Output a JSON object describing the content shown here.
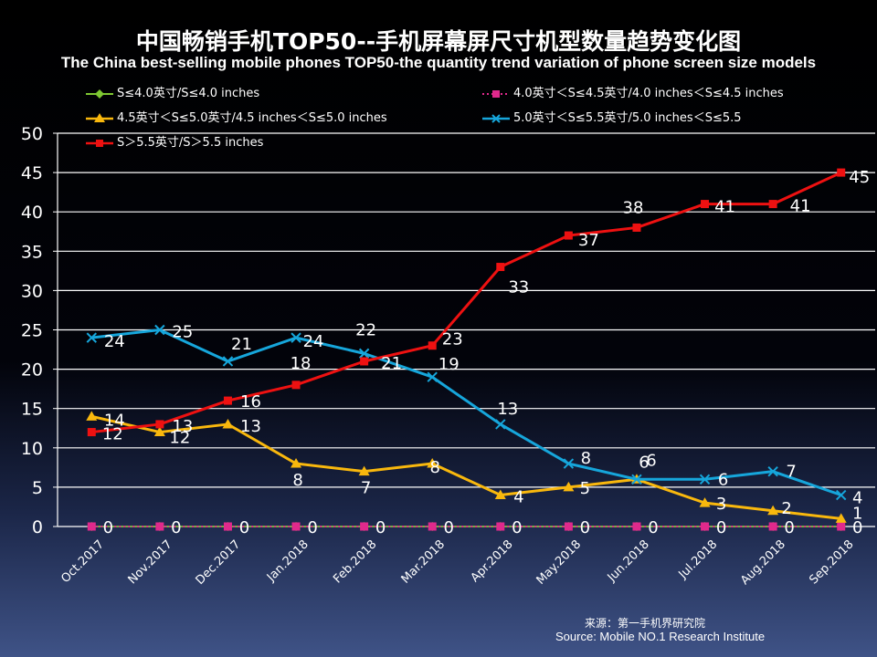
{
  "title_cn": "中国畅销手机TOP50--手机屏幕屏尺寸机型数量趋势变化图",
  "title_en": "The China best-selling mobile phones TOP50-the quantity trend variation of phone screen size models",
  "source_cn": "来源：第一手机界研究院",
  "source_en": "Source: Mobile NO.1 Research Institute",
  "chart_data": {
    "type": "line",
    "title": "中国畅销手机TOP50--手机屏幕屏尺寸机型数量趋势变化图",
    "subtitle": "The China best-selling mobile phones TOP50-the quantity trend variation of phone screen size models",
    "categories": [
      "Oct.2017",
      "Nov.2017",
      "Dec.2017",
      "Jan.2018",
      "Feb.2018",
      "Mar.2018",
      "Apr.2018",
      "May.2018",
      "Jun.2018",
      "Jul.2018",
      "Aug.2018",
      "Sep.2018"
    ],
    "ylim": [
      0,
      50
    ],
    "yticks": [
      "0",
      "5",
      "10",
      "15",
      "20",
      "25",
      "30",
      "35",
      "40",
      "45",
      "50"
    ],
    "grid": true,
    "legend_position": "top",
    "series": [
      {
        "name": "S≤4.0英寸/S≤4.0 inches",
        "color": "#7ec832",
        "marker": "diamond",
        "values": [
          0,
          0,
          0,
          0,
          0,
          0,
          0,
          0,
          0,
          0,
          0,
          0
        ],
        "labels": [],
        "label_offsets": []
      },
      {
        "name": "4.0英寸＜S≤4.5英寸/4.0 inches＜S≤4.5 inches",
        "color": "#e0298c",
        "marker": "square",
        "values": [
          0,
          0,
          0,
          0,
          0,
          0,
          0,
          0,
          0,
          0,
          0,
          0
        ],
        "labels": [
          "0",
          "0",
          "0",
          "0",
          "0",
          "0",
          "0",
          "0",
          "0",
          "0",
          "0",
          "0"
        ]
      },
      {
        "name": "4.5英寸＜S≤5.0英寸/4.5 inches＜S≤5.0 inches",
        "color": "#f9b80d",
        "marker": "triangle",
        "values": [
          14,
          12,
          13,
          8,
          7,
          8,
          4,
          5,
          6,
          3,
          2,
          1
        ],
        "labels": [
          "14",
          "12",
          "13",
          "8",
          "7",
          "8",
          "4",
          "5",
          "6",
          "3",
          "2",
          "1"
        ]
      },
      {
        "name": "5.0英寸＜S≤5.5英寸/5.0 inches＜S≤5.5",
        "color": "#16a6db",
        "marker": "x",
        "values": [
          24,
          25,
          21,
          24,
          22,
          19,
          13,
          8,
          6,
          6,
          7,
          4
        ],
        "labels": [
          "24",
          "25",
          "21",
          "24",
          "22",
          "19",
          "13",
          "8",
          "6",
          "6",
          "7",
          "4"
        ]
      },
      {
        "name": "S＞5.5英寸/S＞5.5 inches",
        "color": "#ee1111",
        "marker": "square",
        "values": [
          12,
          13,
          16,
          18,
          21,
          23,
          33,
          37,
          38,
          41,
          41,
          45
        ],
        "labels": [
          "12",
          "13",
          "16",
          "18",
          "21",
          "23",
          "33",
          "37",
          "38",
          "41",
          "41",
          "45"
        ]
      }
    ]
  }
}
